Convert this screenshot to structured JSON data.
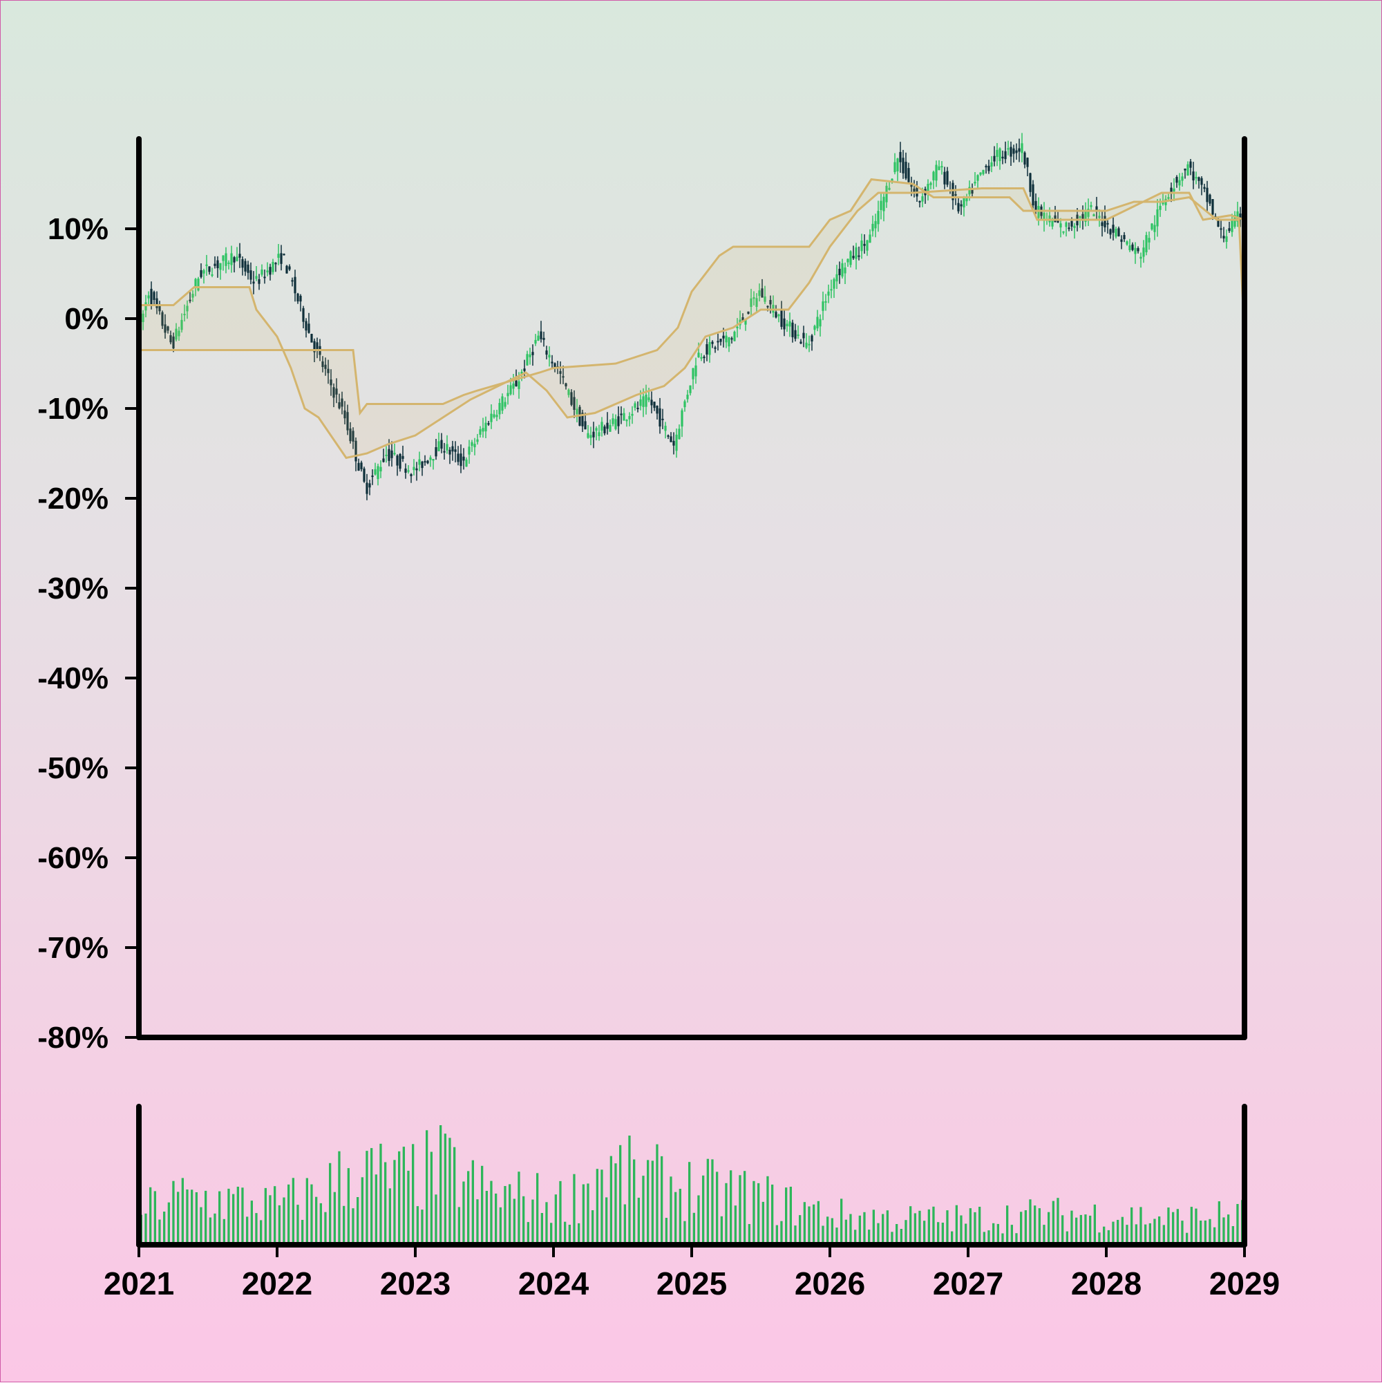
{
  "chart_data": {
    "type": "candlestick",
    "title": "",
    "xlabel": "",
    "ylabel": "",
    "xlim": [
      2021,
      2029
    ],
    "ylim": [
      -80,
      20
    ],
    "y_ticks": [
      "10%",
      "0%",
      "-10%",
      "-20%",
      "-30%",
      "-40%",
      "-50%",
      "-60%",
      "-70%",
      "-80%"
    ],
    "y_tick_values": [
      10,
      0,
      -10,
      -20,
      -30,
      -40,
      -50,
      -60,
      -70,
      -80
    ],
    "x_ticks": [
      "2021",
      "2022",
      "2023",
      "2024",
      "2025",
      "2026",
      "2027",
      "2028",
      "2029"
    ],
    "x_tick_values": [
      2021,
      2022,
      2023,
      2024,
      2025,
      2026,
      2027,
      2028,
      2029
    ],
    "grid": false,
    "colors": {
      "up": "#2ec363",
      "down": "#0e2f3a",
      "band": "#d4b56e",
      "volume": "#2db65a",
      "axis": "#000000"
    },
    "price_path": [
      [
        2021.0,
        -2
      ],
      [
        2021.08,
        3
      ],
      [
        2021.25,
        -3
      ],
      [
        2021.45,
        5
      ],
      [
        2021.7,
        7
      ],
      [
        2021.85,
        4
      ],
      [
        2022.05,
        7
      ],
      [
        2022.25,
        -2
      ],
      [
        2022.5,
        -11
      ],
      [
        2022.65,
        -19
      ],
      [
        2022.8,
        -15
      ],
      [
        2023.0,
        -17
      ],
      [
        2023.2,
        -14
      ],
      [
        2023.35,
        -16
      ],
      [
        2023.55,
        -11
      ],
      [
        2023.75,
        -7
      ],
      [
        2023.9,
        -2
      ],
      [
        2024.05,
        -6
      ],
      [
        2024.25,
        -13
      ],
      [
        2024.4,
        -12
      ],
      [
        2024.7,
        -9
      ],
      [
        2024.88,
        -14
      ],
      [
        2025.05,
        -4
      ],
      [
        2025.3,
        -2
      ],
      [
        2025.5,
        3
      ],
      [
        2025.65,
        0
      ],
      [
        2025.85,
        -3
      ],
      [
        2026.05,
        5
      ],
      [
        2026.3,
        9
      ],
      [
        2026.5,
        18
      ],
      [
        2026.65,
        13
      ],
      [
        2026.8,
        17
      ],
      [
        2026.95,
        12
      ],
      [
        2027.1,
        16
      ],
      [
        2027.2,
        18
      ],
      [
        2027.4,
        19
      ],
      [
        2027.5,
        12
      ],
      [
        2027.7,
        10
      ],
      [
        2027.9,
        12
      ],
      [
        2028.05,
        10
      ],
      [
        2028.25,
        7
      ],
      [
        2028.45,
        14
      ],
      [
        2028.6,
        17
      ],
      [
        2028.75,
        13
      ],
      [
        2028.85,
        9
      ],
      [
        2029.0,
        12
      ]
    ],
    "band_upper": [
      [
        2021.0,
        1.5
      ],
      [
        2021.25,
        1.5
      ],
      [
        2021.4,
        3.5
      ],
      [
        2021.8,
        3.5
      ],
      [
        2021.85,
        1
      ],
      [
        2022.0,
        -2
      ],
      [
        2022.1,
        -5.5
      ],
      [
        2022.2,
        -10
      ],
      [
        2022.3,
        -11
      ],
      [
        2022.5,
        -15.5
      ],
      [
        2022.65,
        -15
      ],
      [
        2022.8,
        -14
      ],
      [
        2023.0,
        -13
      ],
      [
        2023.2,
        -11
      ],
      [
        2023.4,
        -9
      ],
      [
        2023.6,
        -7.5
      ],
      [
        2023.8,
        -6
      ],
      [
        2023.95,
        -8
      ],
      [
        2024.1,
        -11
      ],
      [
        2024.3,
        -10.5
      ],
      [
        2024.6,
        -8.5
      ],
      [
        2024.8,
        -7.5
      ],
      [
        2024.95,
        -5.5
      ],
      [
        2025.1,
        -2
      ],
      [
        2025.3,
        -1
      ],
      [
        2025.5,
        1
      ],
      [
        2025.7,
        1
      ],
      [
        2025.85,
        4
      ],
      [
        2026.0,
        8
      ],
      [
        2026.2,
        12
      ],
      [
        2026.35,
        14
      ],
      [
        2026.6,
        14
      ],
      [
        2027.1,
        14.5
      ],
      [
        2027.4,
        14.5
      ],
      [
        2027.5,
        11
      ],
      [
        2028.0,
        11
      ],
      [
        2028.2,
        12.5
      ],
      [
        2028.4,
        14
      ],
      [
        2028.6,
        14
      ],
      [
        2028.7,
        11
      ],
      [
        2028.9,
        11.5
      ],
      [
        2029.0,
        11
      ]
    ],
    "band_lower": [
      [
        2021.0,
        -3.5
      ],
      [
        2022.55,
        -3.5
      ],
      [
        2022.6,
        -10.5
      ],
      [
        2022.65,
        -9.5
      ],
      [
        2023.2,
        -9.5
      ],
      [
        2023.35,
        -8.5
      ],
      [
        2023.45,
        -8
      ],
      [
        2023.9,
        -6
      ],
      [
        2024.0,
        -5.5
      ],
      [
        2024.45,
        -5
      ],
      [
        2024.55,
        -4.5
      ],
      [
        2024.75,
        -3.5
      ],
      [
        2024.9,
        -1
      ],
      [
        2025.0,
        3
      ],
      [
        2025.2,
        7
      ],
      [
        2025.3,
        8
      ],
      [
        2025.55,
        8
      ],
      [
        2025.85,
        8
      ],
      [
        2026.0,
        11
      ],
      [
        2026.15,
        12
      ],
      [
        2026.3,
        15.5
      ],
      [
        2026.6,
        15
      ],
      [
        2026.75,
        13.5
      ],
      [
        2027.0,
        13.5
      ],
      [
        2027.3,
        13.5
      ],
      [
        2027.4,
        12
      ],
      [
        2027.5,
        12
      ],
      [
        2028.0,
        12
      ],
      [
        2028.2,
        13
      ],
      [
        2028.4,
        13
      ],
      [
        2028.6,
        13.5
      ],
      [
        2028.8,
        11
      ],
      [
        2028.96,
        11
      ],
      [
        2029.0,
        -2
      ]
    ],
    "volume_envelope": [
      [
        2021.0,
        0.4
      ],
      [
        2021.3,
        0.55
      ],
      [
        2021.7,
        0.5
      ],
      [
        2022.0,
        0.45
      ],
      [
        2022.3,
        0.6
      ],
      [
        2022.55,
        0.85
      ],
      [
        2022.9,
        0.75
      ],
      [
        2023.2,
        0.9
      ],
      [
        2023.5,
        0.6
      ],
      [
        2023.8,
        0.55
      ],
      [
        2024.1,
        0.5
      ],
      [
        2024.35,
        0.85
      ],
      [
        2024.7,
        0.75
      ],
      [
        2025.0,
        0.65
      ],
      [
        2025.3,
        0.6
      ],
      [
        2025.6,
        0.5
      ],
      [
        2026.0,
        0.35
      ],
      [
        2026.5,
        0.3
      ],
      [
        2027.0,
        0.3
      ],
      [
        2027.5,
        0.35
      ],
      [
        2028.0,
        0.35
      ],
      [
        2028.5,
        0.3
      ],
      [
        2029.0,
        0.35
      ]
    ]
  }
}
